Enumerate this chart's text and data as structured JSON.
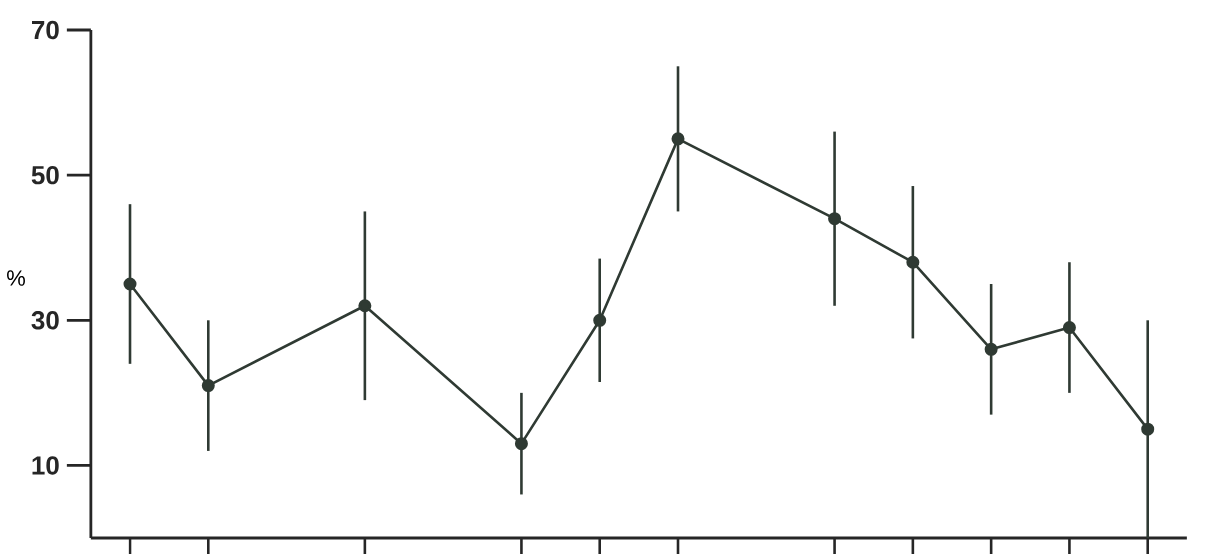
{
  "chart_data": {
    "type": "line",
    "ylabel": "%",
    "categories": [
      null,
      null,
      null,
      null,
      null,
      null,
      null,
      null,
      null,
      null,
      null,
      null,
      null,
      null
    ],
    "series": [
      {
        "color": "#2f3a33",
        "values": [
          35,
          21,
          null,
          32,
          null,
          13,
          30,
          55,
          null,
          44,
          38,
          26,
          29,
          15
        ],
        "errors": [
          11,
          9,
          null,
          13,
          null,
          7,
          8.5,
          10,
          null,
          12,
          10.5,
          9,
          9,
          15
        ]
      }
    ],
    "ylim": [
      0,
      70
    ],
    "yticks": [
      10,
      30,
      50,
      70
    ],
    "marker": "circle",
    "line_style": "solid",
    "grid": false
  }
}
